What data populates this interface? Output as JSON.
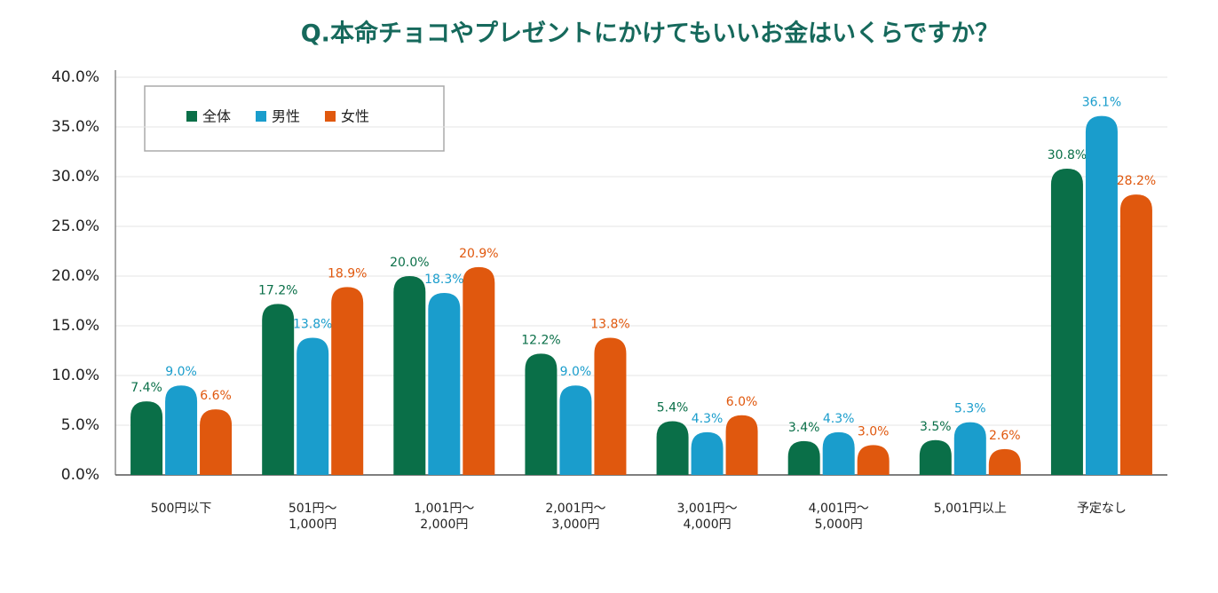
{
  "chart_data": {
    "type": "bar",
    "title": "Q.本命チョコやプレゼントにかけてもいいお金はいくらですか？",
    "categories": [
      "500円以下",
      "501円～\n1,000円",
      "1,001円～\n2,000円",
      "2,001円～\n3,000円",
      "3,001円～\n4,000円",
      "4,001円～\n5,000円",
      "5,001円以上",
      "予定なし"
    ],
    "series": [
      {
        "name": "全体",
        "color": "#0a6f48",
        "values": [
          7.4,
          17.2,
          20.0,
          12.2,
          5.4,
          3.4,
          3.5,
          30.8
        ],
        "value_labels": [
          "7.4%",
          "17.2%",
          "20.0%",
          "12.2%",
          "5.4%",
          "3.4%",
          "3.5%",
          "30.8%"
        ]
      },
      {
        "name": "男性",
        "color": "#1a9dcc",
        "values": [
          9.0,
          13.8,
          18.3,
          9.0,
          4.3,
          4.3,
          5.3,
          36.1
        ],
        "value_labels": [
          "9.0%",
          "13.8%",
          "18.3%",
          "9.0%",
          "4.3%",
          "4.3%",
          "5.3%",
          "36.1%"
        ]
      },
      {
        "name": "女性",
        "color": "#e0580e",
        "values": [
          6.6,
          18.9,
          20.9,
          13.8,
          6.0,
          3.0,
          2.6,
          28.2
        ],
        "value_labels": [
          "6.6%",
          "18.9%",
          "20.9%",
          "13.8%",
          "6.0%",
          "3.0%",
          "2.6%",
          "28.2%"
        ]
      }
    ],
    "ylim": [
      0,
      40
    ],
    "yticks": [
      {
        "value": 0,
        "label": "0.0%"
      },
      {
        "value": 5,
        "label": "5.0%"
      },
      {
        "value": 10,
        "label": "10.0%"
      },
      {
        "value": 15,
        "label": "15.0%"
      },
      {
        "value": 20,
        "label": "20.0%"
      },
      {
        "value": 25,
        "label": "25.0%"
      },
      {
        "value": 30,
        "label": "30.0%"
      },
      {
        "value": 35,
        "label": "35.0%"
      },
      {
        "value": 40,
        "label": "40.0%"
      }
    ],
    "grid": true,
    "legend": "upper-left"
  }
}
